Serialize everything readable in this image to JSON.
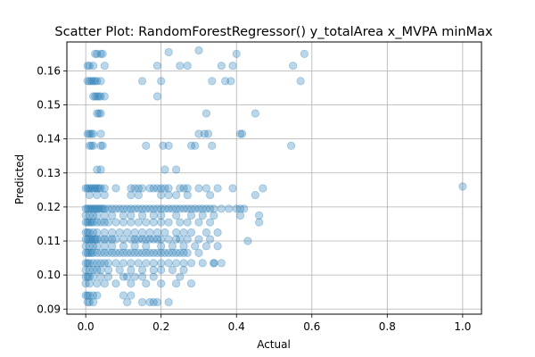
{
  "chart_data": {
    "type": "scatter",
    "title": "Scatter Plot: RandomForestRegressor() y_totalArea x_MVPA minMax",
    "xlabel": "Actual",
    "ylabel": "Predicted",
    "xlim": [
      -0.05,
      1.05
    ],
    "ylim": [
      0.0885,
      0.1685
    ],
    "xticks": [
      0.0,
      0.2,
      0.4,
      0.6,
      0.8,
      1.0
    ],
    "xtick_labels": [
      "0.0",
      "0.2",
      "0.4",
      "0.6",
      "0.8",
      "1.0"
    ],
    "yticks": [
      0.09,
      0.1,
      0.11,
      0.12,
      0.13,
      0.14,
      0.15,
      0.16
    ],
    "ytick_labels": [
      "0.09",
      "0.10",
      "0.11",
      "0.12",
      "0.13",
      "0.14",
      "0.15",
      "0.16"
    ],
    "grid": true,
    "marker_color": "#1f77b4",
    "marker_alpha": 0.3,
    "series": [
      {
        "x": [
          0.025,
          0.03,
          0.04,
          0.045,
          0.005,
          0.01,
          0.02,
          0.05,
          0.19,
          0.22,
          0.25,
          0.27,
          0.3,
          0.36,
          0.39,
          0.4,
          0.55,
          0.58,
          0.005,
          0.01,
          0.015,
          0.02,
          0.025,
          0.03,
          0.04,
          0.15,
          0.2,
          0.335,
          0.37,
          0.385,
          0.57,
          0.02,
          0.025,
          0.03,
          0.035,
          0.04,
          0.05,
          0.19,
          0.03,
          0.035,
          0.04,
          0.32,
          0.45,
          0.005,
          0.01,
          0.015,
          0.02,
          0.04,
          0.3,
          0.315,
          0.325,
          0.41,
          0.415,
          0.01,
          0.015,
          0.02,
          0.04,
          0.045,
          0.16,
          0.205,
          0.22,
          0.28,
          0.29,
          0.335,
          0.545,
          0.03,
          0.04,
          0.21,
          0.24,
          0.0,
          0.005,
          0.01,
          0.015,
          0.02,
          0.025,
          0.03,
          0.035,
          0.04,
          0.05,
          0.08,
          0.12,
          0.13,
          0.14,
          0.15,
          0.17,
          0.18,
          0.19,
          0.2,
          0.21,
          0.22,
          0.25,
          0.26,
          0.27,
          0.3,
          0.32,
          0.35,
          0.39,
          0.47,
          1.0,
          0.01,
          0.03,
          0.05,
          0.12,
          0.14,
          0.2,
          0.22,
          0.24,
          0.27,
          0.33,
          0.45,
          0.0,
          0.005,
          0.01,
          0.015,
          0.02,
          0.025,
          0.03,
          0.035,
          0.04,
          0.045,
          0.05,
          0.06,
          0.07,
          0.08,
          0.09,
          0.1,
          0.11,
          0.12,
          0.13,
          0.14,
          0.15,
          0.16,
          0.17,
          0.18,
          0.19,
          0.2,
          0.21,
          0.22,
          0.23,
          0.24,
          0.25,
          0.26,
          0.27,
          0.28,
          0.29,
          0.3,
          0.31,
          0.32,
          0.33,
          0.34,
          0.36,
          0.38,
          0.4,
          0.41,
          0.42,
          0.46,
          0.0,
          0.01,
          0.02,
          0.03,
          0.05,
          0.07,
          0.1,
          0.12,
          0.15,
          0.18,
          0.2,
          0.24,
          0.28,
          0.31,
          0.34,
          0.41,
          0.46,
          0.0,
          0.005,
          0.01,
          0.015,
          0.02,
          0.03,
          0.04,
          0.05,
          0.06,
          0.08,
          0.1,
          0.12,
          0.14,
          0.16,
          0.18,
          0.2,
          0.22,
          0.25,
          0.27,
          0.3,
          0.33,
          0.0,
          0.005,
          0.01,
          0.02,
          0.03,
          0.05,
          0.07,
          0.09,
          0.11,
          0.13,
          0.15,
          0.17,
          0.19,
          0.21,
          0.24,
          0.26,
          0.28,
          0.32,
          0.35,
          0.43,
          0.0,
          0.005,
          0.01,
          0.015,
          0.02,
          0.025,
          0.03,
          0.04,
          0.05,
          0.06,
          0.07,
          0.08,
          0.1,
          0.12,
          0.13,
          0.14,
          0.15,
          0.16,
          0.17,
          0.18,
          0.19,
          0.2,
          0.22,
          0.24,
          0.25,
          0.27,
          0.3,
          0.33,
          0.0,
          0.01,
          0.02,
          0.03,
          0.05,
          0.07,
          0.1,
          0.13,
          0.16,
          0.2,
          0.23,
          0.26,
          0.29,
          0.32,
          0.35,
          0.0,
          0.005,
          0.01,
          0.015,
          0.02,
          0.03,
          0.04,
          0.05,
          0.06,
          0.07,
          0.08,
          0.09,
          0.1,
          0.11,
          0.12,
          0.13,
          0.14,
          0.15,
          0.16,
          0.17,
          0.18,
          0.19,
          0.2,
          0.21,
          0.22,
          0.23,
          0.24,
          0.25,
          0.26,
          0.27,
          0.3,
          0.34,
          0.0,
          0.005,
          0.01,
          0.02,
          0.03,
          0.04,
          0.05,
          0.06,
          0.08,
          0.1,
          0.12,
          0.14,
          0.16,
          0.18,
          0.2,
          0.22,
          0.24,
          0.26,
          0.28,
          0.31,
          0.34,
          0.36,
          0.0,
          0.01,
          0.02,
          0.03,
          0.04,
          0.06,
          0.09,
          0.12,
          0.15,
          0.18,
          0.2,
          0.23,
          0.26,
          0.0,
          0.005,
          0.01,
          0.02,
          0.04,
          0.06,
          0.1,
          0.11,
          0.13,
          0.15,
          0.18,
          0.25,
          0.0,
          0.01,
          0.03,
          0.05,
          0.08,
          0.12,
          0.16,
          0.2,
          0.24,
          0.28,
          0.0,
          0.005,
          0.01,
          0.02,
          0.03,
          0.12,
          0.005,
          0.01,
          0.02,
          0.1,
          0.11,
          0.15,
          0.17,
          0.18,
          0.19,
          0.22
        ],
        "y": [
          0.165,
          0.165,
          0.165,
          0.165,
          0.1615,
          0.1615,
          0.1615,
          0.1615,
          0.1615,
          0.1655,
          0.1615,
          0.1615,
          0.166,
          0.1615,
          0.1615,
          0.165,
          0.1615,
          0.165,
          0.157,
          0.157,
          0.157,
          0.157,
          0.157,
          0.157,
          0.157,
          0.157,
          0.157,
          0.157,
          0.157,
          0.157,
          0.157,
          0.1525,
          0.1525,
          0.1525,
          0.1525,
          0.1525,
          0.1525,
          0.1525,
          0.1475,
          0.1475,
          0.1475,
          0.1475,
          0.1475,
          0.1415,
          0.1415,
          0.1415,
          0.1415,
          0.1415,
          0.1415,
          0.1415,
          0.1415,
          0.1415,
          0.1415,
          0.138,
          0.138,
          0.138,
          0.138,
          0.138,
          0.138,
          0.138,
          0.138,
          0.138,
          0.138,
          0.138,
          0.138,
          0.131,
          0.131,
          0.131,
          0.131,
          0.1255,
          0.1255,
          0.1255,
          0.1255,
          0.1255,
          0.1255,
          0.1255,
          0.1255,
          0.1255,
          0.1255,
          0.1255,
          0.1255,
          0.1255,
          0.1255,
          0.1255,
          0.1255,
          0.1255,
          0.1255,
          0.1255,
          0.1255,
          0.1255,
          0.1255,
          0.1255,
          0.1255,
          0.1255,
          0.1255,
          0.1255,
          0.1255,
          0.1255,
          0.126,
          0.1235,
          0.1235,
          0.1235,
          0.1235,
          0.1235,
          0.1235,
          0.1235,
          0.1235,
          0.1235,
          0.1235,
          0.1235,
          0.1195,
          0.1195,
          0.1195,
          0.1195,
          0.1195,
          0.1195,
          0.1195,
          0.1195,
          0.1195,
          0.1195,
          0.1195,
          0.1195,
          0.1195,
          0.1195,
          0.1195,
          0.1195,
          0.1195,
          0.1195,
          0.1195,
          0.1195,
          0.1195,
          0.1195,
          0.1195,
          0.1195,
          0.1195,
          0.1195,
          0.1195,
          0.1195,
          0.1195,
          0.1195,
          0.1195,
          0.1195,
          0.1195,
          0.1195,
          0.1195,
          0.1195,
          0.1195,
          0.1195,
          0.1195,
          0.1195,
          0.1195,
          0.1195,
          0.1195,
          0.1195,
          0.1195,
          0.1155,
          0.1175,
          0.1175,
          0.1175,
          0.1175,
          0.1175,
          0.1175,
          0.1175,
          0.1175,
          0.1175,
          0.1175,
          0.1175,
          0.1175,
          0.1175,
          0.1175,
          0.1175,
          0.1175,
          0.1175,
          0.1155,
          0.1155,
          0.1155,
          0.1155,
          0.1155,
          0.1155,
          0.1155,
          0.1155,
          0.1155,
          0.1155,
          0.1155,
          0.1155,
          0.1155,
          0.1155,
          0.1155,
          0.1155,
          0.1155,
          0.1155,
          0.1155,
          0.1155,
          0.1155,
          0.1125,
          0.1125,
          0.1125,
          0.1125,
          0.1125,
          0.1125,
          0.1125,
          0.1125,
          0.1125,
          0.1125,
          0.1125,
          0.1125,
          0.1125,
          0.1125,
          0.1125,
          0.1125,
          0.1125,
          0.1125,
          0.1125,
          0.11,
          0.1105,
          0.1105,
          0.1105,
          0.1105,
          0.1105,
          0.1105,
          0.1105,
          0.1105,
          0.1105,
          0.1105,
          0.1105,
          0.1105,
          0.1105,
          0.1105,
          0.1105,
          0.1105,
          0.1105,
          0.1105,
          0.1105,
          0.1105,
          0.1105,
          0.1105,
          0.1105,
          0.1105,
          0.1105,
          0.1105,
          0.1105,
          0.1105,
          0.1085,
          0.1085,
          0.1085,
          0.1085,
          0.1085,
          0.1085,
          0.1085,
          0.1085,
          0.1085,
          0.1085,
          0.1085,
          0.1085,
          0.1085,
          0.1085,
          0.1085,
          0.1065,
          0.1065,
          0.1065,
          0.1065,
          0.1065,
          0.1065,
          0.1065,
          0.1065,
          0.1065,
          0.1065,
          0.1065,
          0.1065,
          0.1065,
          0.1065,
          0.1065,
          0.1065,
          0.1065,
          0.1065,
          0.1065,
          0.1065,
          0.1065,
          0.1065,
          0.1065,
          0.1065,
          0.1065,
          0.1065,
          0.1065,
          0.1065,
          0.1065,
          0.1065,
          0.1065,
          0.1035,
          0.1035,
          0.1035,
          0.1035,
          0.1035,
          0.1035,
          0.1035,
          0.1035,
          0.1035,
          0.1035,
          0.1035,
          0.1035,
          0.1035,
          0.1035,
          0.1035,
          0.1035,
          0.1035,
          0.1035,
          0.1035,
          0.1035,
          0.1035,
          0.1035,
          0.1035,
          0.1015,
          0.1015,
          0.1015,
          0.1015,
          0.1015,
          0.1015,
          0.1015,
          0.1015,
          0.1015,
          0.1015,
          0.1015,
          0.1015,
          0.1015,
          0.0995,
          0.0995,
          0.0995,
          0.0995,
          0.0995,
          0.0995,
          0.0995,
          0.0995,
          0.0995,
          0.0995,
          0.0995,
          0.0995,
          0.0975,
          0.0975,
          0.0975,
          0.0975,
          0.0975,
          0.0975,
          0.0975,
          0.0975,
          0.0975,
          0.0975,
          0.094,
          0.094,
          0.094,
          0.094,
          0.094,
          0.094,
          0.092,
          0.092,
          0.092,
          0.094,
          0.092,
          0.092,
          0.092,
          0.092,
          0.092,
          0.092
        ]
      }
    ]
  }
}
